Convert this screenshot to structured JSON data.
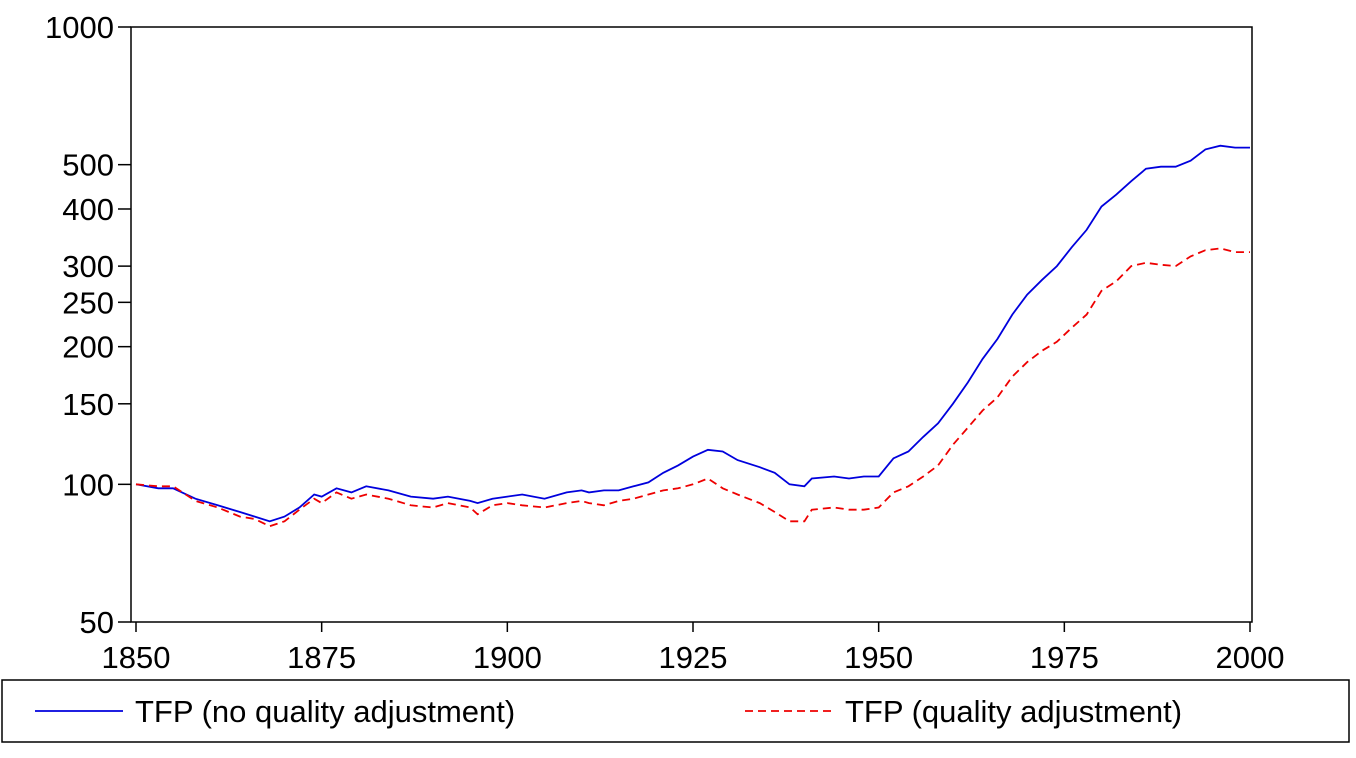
{
  "chart_data": {
    "type": "line",
    "log_y": true,
    "x": [
      1850,
      1853,
      1855,
      1858,
      1861,
      1864,
      1866,
      1868,
      1870,
      1872,
      1874,
      1875,
      1877,
      1879,
      1881,
      1884,
      1887,
      1890,
      1892,
      1895,
      1896,
      1898,
      1900,
      1902,
      1905,
      1908,
      1910,
      1911,
      1913,
      1915,
      1917,
      1919,
      1921,
      1923,
      1925,
      1927,
      1929,
      1931,
      1934,
      1936,
      1938,
      1940,
      1941,
      1944,
      1946,
      1948,
      1950,
      1952,
      1954,
      1956,
      1958,
      1960,
      1962,
      1964,
      1966,
      1968,
      1970,
      1972,
      1974,
      1976,
      1978,
      1980,
      1982,
      1984,
      1986,
      1988,
      1990,
      1992,
      1994,
      1996,
      1998,
      2000
    ],
    "series": [
      {
        "name": "TFP (no quality adjustment)",
        "color": "#0000dd",
        "dash": false,
        "values": [
          100,
          98,
          98,
          93,
          90,
          87,
          85,
          83,
          85,
          89,
          95,
          94,
          98,
          96,
          99,
          97,
          94,
          93,
          94,
          92,
          91,
          93,
          94,
          95,
          93,
          96,
          97,
          96,
          97,
          97,
          99,
          101,
          106,
          110,
          115,
          119,
          118,
          113,
          109,
          106,
          100,
          99,
          103,
          104,
          103,
          104,
          104,
          114,
          118,
          127,
          136,
          150,
          167,
          188,
          208,
          235,
          260,
          280,
          300,
          330,
          360,
          405,
          430,
          460,
          490,
          495,
          495,
          510,
          540,
          550,
          545,
          545
        ]
      },
      {
        "name": "TFP (quality adjustment)",
        "color": "#ee0000",
        "dash": true,
        "values": [
          100,
          99,
          99,
          92,
          89,
          85,
          84,
          81,
          83,
          88,
          93,
          91,
          96,
          93,
          95,
          93,
          90,
          89,
          91,
          89,
          86,
          90,
          91,
          90,
          89,
          91,
          92,
          91,
          90,
          92,
          93,
          95,
          97,
          98,
          100,
          103,
          98,
          95,
          91,
          87,
          83,
          83,
          88,
          89,
          88,
          88,
          89,
          96,
          99,
          104,
          110,
          122,
          133,
          145,
          155,
          172,
          185,
          196,
          205,
          220,
          235,
          265,
          278,
          300,
          305,
          302,
          300,
          315,
          325,
          328,
          322,
          322
        ]
      }
    ],
    "xlim": [
      1850,
      2000
    ],
    "xticks": [
      1850,
      1875,
      1900,
      1925,
      1950,
      1975,
      2000
    ],
    "ylim": [
      50,
      1000
    ],
    "yticks": [
      50,
      100,
      150,
      200,
      250,
      300,
      400,
      500,
      1000
    ]
  }
}
